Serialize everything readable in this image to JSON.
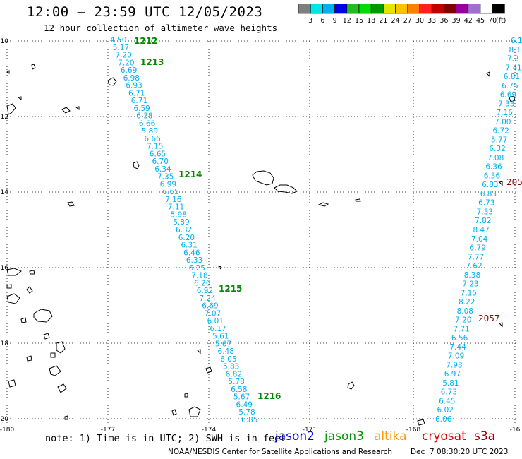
{
  "title": "12:00 – 23:59 UTC 12/05/2023",
  "subtitle": "12 hour collection of altimeter wave heights",
  "colorbar": {
    "colors": [
      "#7f7f7f",
      "#00e5e5",
      "#00b0f0",
      "#0000ee",
      "#22bb22",
      "#00dd00",
      "#009900",
      "#e5e500",
      "#ffc000",
      "#ff8000",
      "#ff2020",
      "#c00000",
      "#800000",
      "#990099",
      "#9f6fcf",
      "#ffffff",
      "#000000"
    ],
    "labels": [
      "3",
      "6",
      "9",
      "12",
      "15",
      "18",
      "21",
      "24",
      "27",
      "30",
      "33",
      "36",
      "39",
      "42",
      "45",
      "70"
    ],
    "unit": "(ft)"
  },
  "map": {
    "lon_ticks": [
      "-180",
      "-177",
      "-174",
      "-171",
      "-168",
      "-16"
    ],
    "lat_ticks": [
      "-10",
      "-12",
      "-14",
      "-16",
      "-18",
      "-20"
    ]
  },
  "track_a": {
    "color": "#00b0f0",
    "values": [
      "4.50",
      "5.17",
      "7.20",
      "7.20",
      "6.69",
      "6.98",
      "6.93",
      "6.71",
      "6.71",
      "6.59",
      "6.38",
      "6.66",
      "5.89",
      "6.66",
      "7.15",
      "6.65",
      "6.70",
      "6.34",
      "7.35",
      "6.99",
      "6.65",
      "7.16",
      "7.11",
      "5.98",
      "5.89",
      "6.32",
      "6.20",
      "6.31",
      "6.46",
      "6.33",
      "6.25",
      "7.18",
      "6.26",
      "6.92",
      "7.24",
      "6.69",
      "7.07",
      "6.01",
      "6.17",
      "5.61",
      "5.67",
      "6.48",
      "6.05",
      "5.83",
      "6.82",
      "5.78",
      "6.58",
      "5.67",
      "6.49",
      "5.78",
      "6.85"
    ]
  },
  "track_a_times": {
    "color": "#008800",
    "labels": [
      "1212",
      "1213",
      "1214",
      "1215",
      "1216"
    ]
  },
  "track_b": {
    "color": "#00b0f0",
    "values": [
      "6.1",
      "8.1",
      "7.2",
      "7.41",
      "6.81",
      "6.75",
      "6.69",
      "7.33",
      "7.16",
      "7.00",
      "6.72",
      "5.77",
      "6.32",
      "7.08",
      "6.36",
      "6.36",
      "6.83",
      "6.83",
      "6.73",
      "7.33",
      "7.82",
      "8.47",
      "7.04",
      "6.79",
      "7.77",
      "7.62",
      "8.38",
      "7.23",
      "7.15",
      "8.22",
      "8.08",
      "7.20",
      "7.71",
      "6.56",
      "7.44",
      "7.09",
      "7.93",
      "6.97",
      "5.81",
      "6.73",
      "6.45",
      "6.02",
      "6.06"
    ]
  },
  "track_b_times": {
    "color": "#880000",
    "labels": [
      "205",
      "2057"
    ]
  },
  "note": "note: 1) Time is in UTC; 2) SWH is in feet",
  "satellites": [
    {
      "name": "jason2",
      "color": "#0000ee"
    },
    {
      "name": "jason3",
      "color": "#009900"
    },
    {
      "name": "altika",
      "color": "#ff9900"
    },
    {
      "name": "cryosat",
      "color": "#dd0000"
    },
    {
      "name": "s3a",
      "color": "#990000"
    }
  ],
  "footer": "NOAA/NESDIS Center for Satellite Applications and Research",
  "footer_time": "Dec  7 08:30:20 UTC 2023"
}
